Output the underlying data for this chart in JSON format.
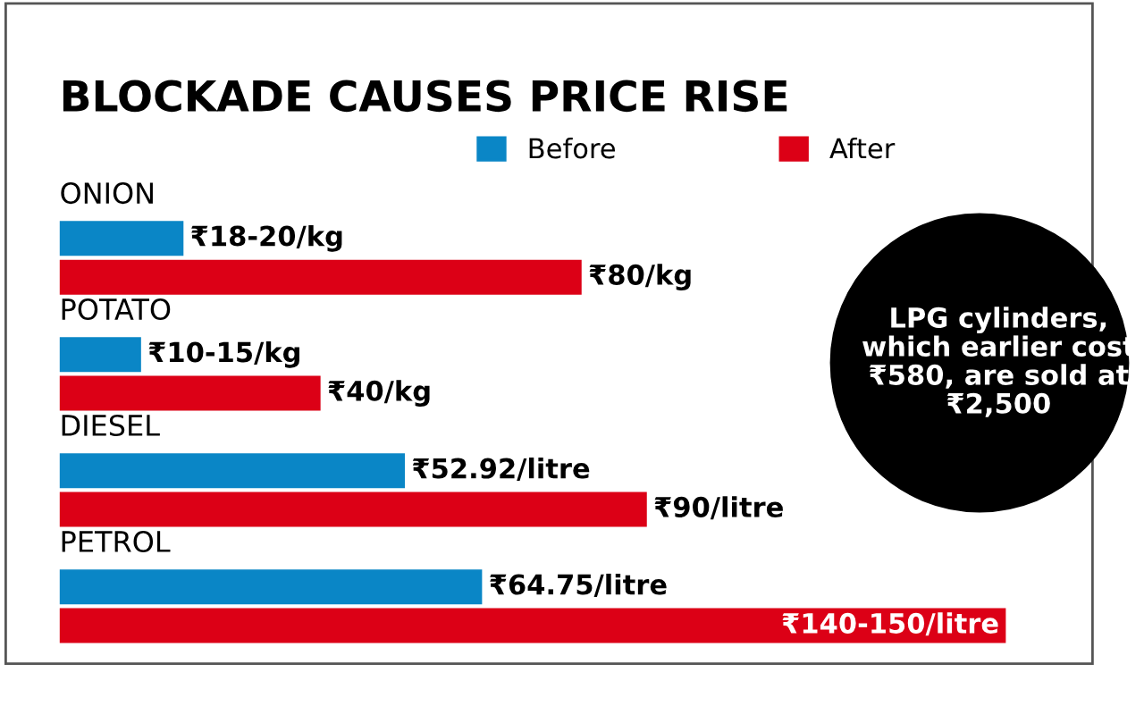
{
  "chart_data": {
    "type": "bar",
    "orientation": "horizontal",
    "title": "BLOCKADE CAUSES PRICE RISE",
    "categories": [
      "ONION",
      "POTATO",
      "DIESEL",
      "PETROL"
    ],
    "series": [
      {
        "name": "Before",
        "color": "#0a86c6",
        "values": [
          19,
          12.5,
          52.92,
          64.75
        ],
        "value_labels": [
          "₹18-20/kg",
          "₹10-15/kg",
          "₹52.92/litre",
          "₹64.75/litre"
        ]
      },
      {
        "name": "After",
        "color": "#dc0016",
        "values": [
          80,
          40,
          90,
          145
        ],
        "value_labels": [
          "₹80/kg",
          "₹40/kg",
          "₹90/litre",
          "₹140-150/litre"
        ]
      }
    ],
    "legend": "top",
    "annotations": [
      "LPG cylinders, which earlier cost ₹580, are sold at ₹2,500"
    ]
  }
}
